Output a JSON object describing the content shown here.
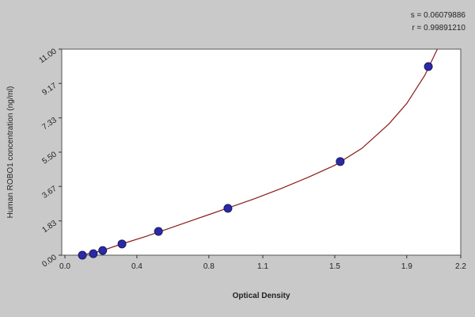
{
  "chart_data": {
    "type": "scatter",
    "annotations": [
      "s = 0.06079886",
      "r = 0.99891210"
    ],
    "xlabel": "Optical Density",
    "ylabel": "Human ROBO1 concentration (ng/ml)",
    "xlim": [
      0,
      2.2
    ],
    "ylim": [
      0,
      11
    ],
    "xticks": [
      {
        "value": 0,
        "label": "0.0"
      },
      0.4,
      0.8,
      1.1,
      1.5,
      1.9,
      2.2
    ],
    "yticks": [
      {
        "value": 0,
        "label": "0.00"
      },
      1.83,
      3.67,
      {
        "value": 5.5,
        "label": "5.50"
      },
      7.33,
      9.17,
      {
        "value": 11,
        "label": "11.00"
      }
    ],
    "series": [
      {
        "mode": "line",
        "color": "#8b1a1a",
        "x": [
          0.09,
          0.2,
          0.3,
          0.45,
          0.6,
          0.75,
          0.9,
          1.05,
          1.2,
          1.35,
          1.5,
          1.65,
          1.8,
          1.9,
          2.0,
          2.07
        ],
        "values": [
          0,
          0.22,
          0.55,
          1.0,
          1.5,
          2.0,
          2.5,
          3.0,
          3.55,
          4.15,
          4.8,
          5.7,
          7.0,
          8.1,
          9.6,
          11
        ]
      },
      {
        "mode": "markers",
        "color": "#2a2aa8",
        "x": [
          0.097,
          0.158,
          0.21,
          0.317,
          0.52,
          0.906,
          1.53,
          2.02
        ],
        "values": [
          0,
          0.08,
          0.25,
          0.6,
          1.27,
          2.5,
          5.0,
          10.07
        ]
      }
    ]
  }
}
